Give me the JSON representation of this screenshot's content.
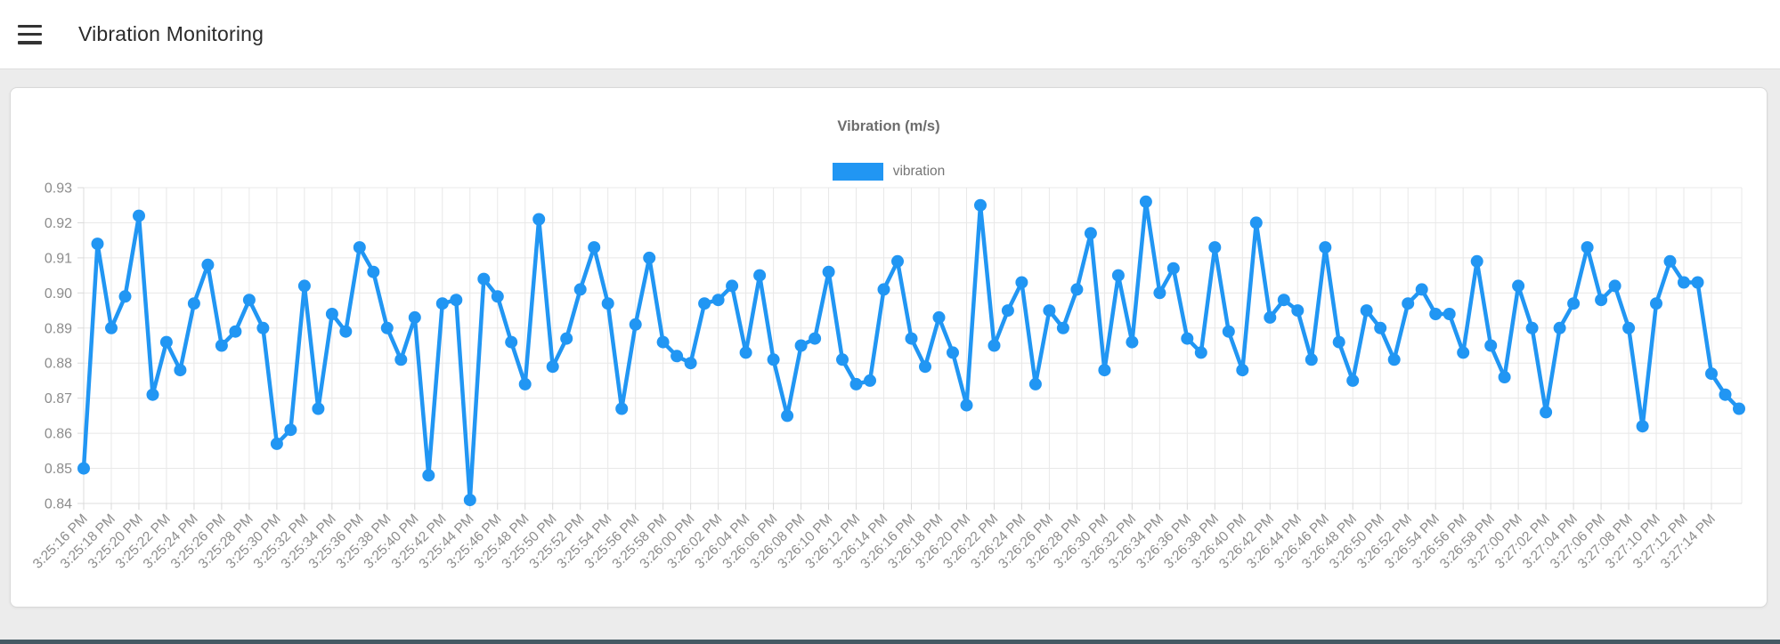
{
  "header": {
    "title": "Vibration Monitoring"
  },
  "chart_data": {
    "type": "line",
    "title": "Vibration (m/s)",
    "legend": {
      "label": "vibration",
      "position": "top-center"
    },
    "grid": true,
    "ylim": [
      0.84,
      0.93
    ],
    "y_ticks": [
      "0.84",
      "0.85",
      "0.86",
      "0.87",
      "0.88",
      "0.89",
      "0.90",
      "0.91",
      "0.92",
      "0.93"
    ],
    "points_per_x_label": 2,
    "x_labels": [
      "3:25:16 PM",
      "3:25:18 PM",
      "3:25:20 PM",
      "3:25:22 PM",
      "3:25:24 PM",
      "3:25:26 PM",
      "3:25:28 PM",
      "3:25:30 PM",
      "3:25:32 PM",
      "3:25:34 PM",
      "3:25:36 PM",
      "3:25:38 PM",
      "3:25:40 PM",
      "3:25:42 PM",
      "3:25:44 PM",
      "3:25:46 PM",
      "3:25:48 PM",
      "3:25:50 PM",
      "3:25:52 PM",
      "3:25:54 PM",
      "3:25:56 PM",
      "3:25:58 PM",
      "3:26:00 PM",
      "3:26:02 PM",
      "3:26:04 PM",
      "3:26:06 PM",
      "3:26:08 PM",
      "3:26:10 PM",
      "3:26:12 PM",
      "3:26:14 PM",
      "3:26:16 PM",
      "3:26:18 PM",
      "3:26:20 PM",
      "3:26:22 PM",
      "3:26:24 PM",
      "3:26:26 PM",
      "3:26:28 PM",
      "3:26:30 PM",
      "3:26:32 PM",
      "3:26:34 PM",
      "3:26:36 PM",
      "3:26:38 PM",
      "3:26:40 PM",
      "3:26:42 PM",
      "3:26:44 PM",
      "3:26:46 PM",
      "3:26:48 PM",
      "3:26:50 PM",
      "3:26:52 PM",
      "3:26:54 PM",
      "3:26:56 PM",
      "3:26:58 PM",
      "3:27:00 PM",
      "3:27:02 PM",
      "3:27:04 PM",
      "3:27:06 PM",
      "3:27:08 PM",
      "3:27:10 PM",
      "3:27:12 PM",
      "3:27:14 PM"
    ],
    "series": [
      {
        "name": "vibration",
        "color": "#2196f3",
        "values": [
          0.85,
          0.914,
          0.89,
          0.899,
          0.922,
          0.871,
          0.886,
          0.878,
          0.897,
          0.908,
          0.885,
          0.889,
          0.898,
          0.89,
          0.857,
          0.861,
          0.902,
          0.867,
          0.894,
          0.889,
          0.913,
          0.906,
          0.89,
          0.881,
          0.893,
          0.848,
          0.897,
          0.898,
          0.841,
          0.904,
          0.899,
          0.886,
          0.874,
          0.921,
          0.879,
          0.887,
          0.901,
          0.913,
          0.897,
          0.867,
          0.891,
          0.91,
          0.886,
          0.882,
          0.88,
          0.897,
          0.898,
          0.902,
          0.883,
          0.905,
          0.881,
          0.865,
          0.885,
          0.887,
          0.906,
          0.881,
          0.874,
          0.875,
          0.901,
          0.909,
          0.887,
          0.879,
          0.893,
          0.883,
          0.868,
          0.925,
          0.885,
          0.895,
          0.903,
          0.874,
          0.895,
          0.89,
          0.901,
          0.917,
          0.878,
          0.905,
          0.886,
          0.926,
          0.9,
          0.907,
          0.887,
          0.883,
          0.913,
          0.889,
          0.878,
          0.92,
          0.893,
          0.898,
          0.895,
          0.881,
          0.913,
          0.886,
          0.875,
          0.895,
          0.89,
          0.881,
          0.897,
          0.901,
          0.894,
          0.894,
          0.883,
          0.909,
          0.885,
          0.876,
          0.902,
          0.89,
          0.866,
          0.89,
          0.897,
          0.913,
          0.898,
          0.902,
          0.89,
          0.862,
          0.897,
          0.909,
          0.903,
          0.903,
          0.877,
          0.871,
          0.867
        ]
      }
    ]
  },
  "colors": {
    "accent_blue": "#2196f3",
    "axis_text": "#8c8c8c",
    "chart_title_text": "#6d6d6d",
    "grid_line": "#e8e8e8",
    "page_background": "#ececec",
    "card_background": "#ffffff",
    "bottom_bar": "#455a64"
  }
}
